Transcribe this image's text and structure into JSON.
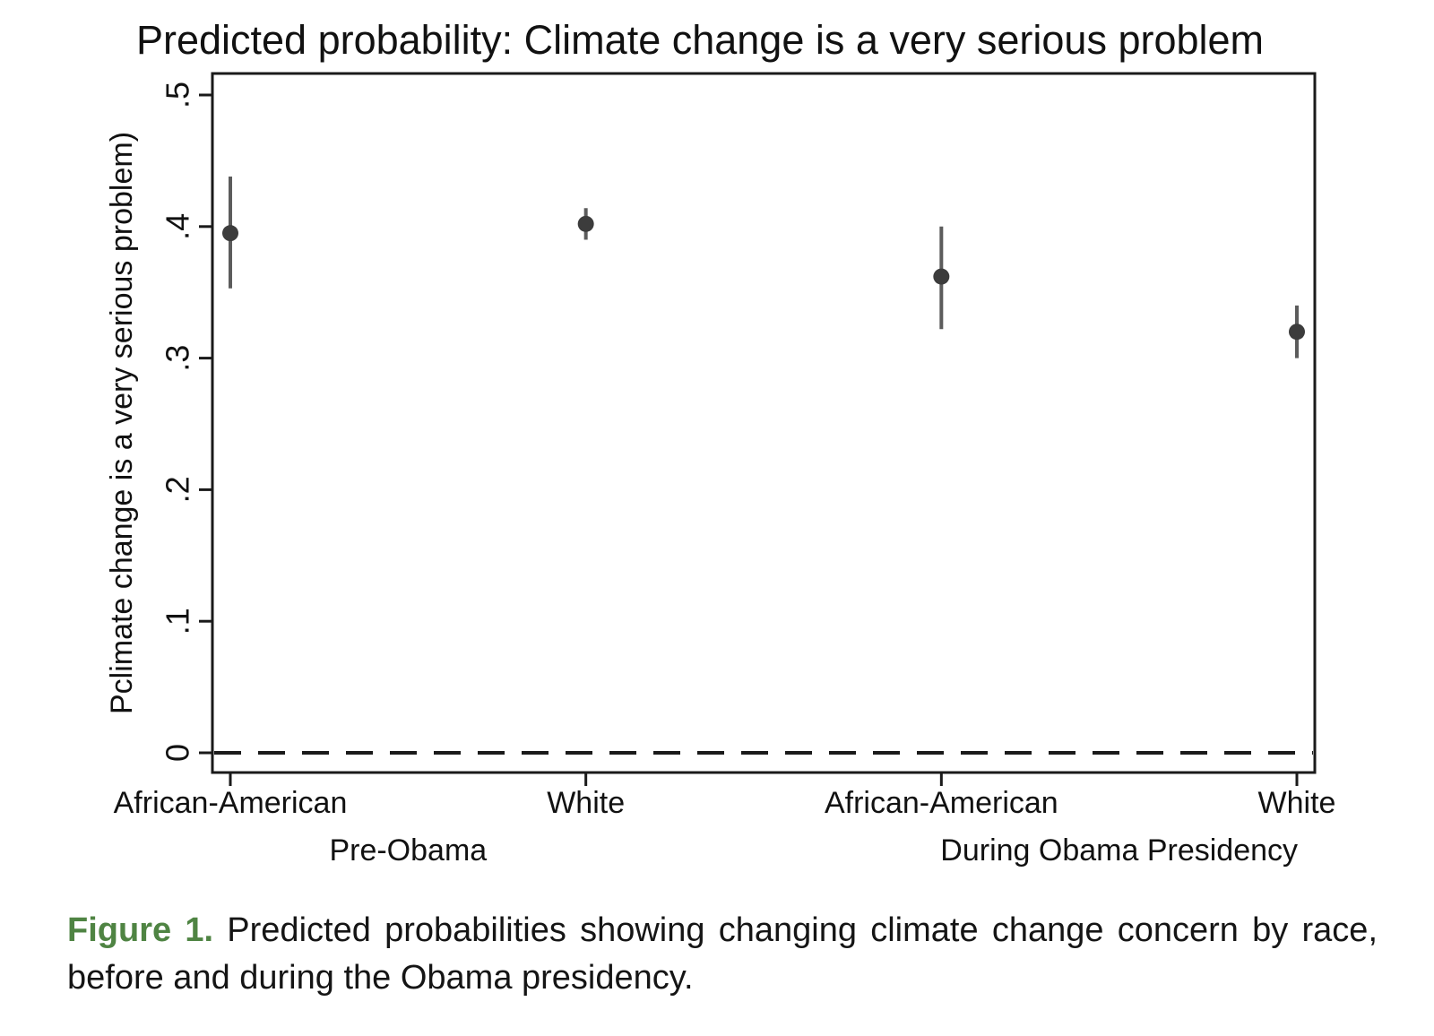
{
  "chart_data": {
    "type": "scatter",
    "title": "Predicted probability: Climate change is a very serious problem",
    "ylabel": "Pclimate change is a very serious problem)",
    "xlabel": "",
    "ylim": [
      -0.015,
      0.517
    ],
    "grid": false,
    "legend": "none",
    "zero_reference_line": {
      "value": 0,
      "style": "dashed"
    },
    "y_ticks": [
      {
        "value": 0,
        "label": "0"
      },
      {
        "value": 0.1,
        "label": ".1"
      },
      {
        "value": 0.2,
        "label": ".2"
      },
      {
        "value": 0.3,
        "label": ".3"
      },
      {
        "value": 0.4,
        "label": ".4"
      },
      {
        "value": 0.5,
        "label": ".5"
      }
    ],
    "groups": [
      {
        "label": "Pre-Obama",
        "categories": [
          "African-American",
          "White"
        ]
      },
      {
        "label": "During Obama Presidency",
        "categories": [
          "African-American",
          "White"
        ]
      }
    ],
    "points": [
      {
        "group": "Pre-Obama",
        "category": "African-American",
        "estimate": 0.395,
        "ci_low": 0.353,
        "ci_high": 0.438
      },
      {
        "group": "Pre-Obama",
        "category": "White",
        "estimate": 0.402,
        "ci_low": 0.39,
        "ci_high": 0.414
      },
      {
        "group": "During Obama Presidency",
        "category": "African-American",
        "estimate": 0.362,
        "ci_low": 0.322,
        "ci_high": 0.4
      },
      {
        "group": "During Obama Presidency",
        "category": "White",
        "estimate": 0.32,
        "ci_low": 0.3,
        "ci_high": 0.34
      }
    ],
    "colors": {
      "marker": "#3c3c3c",
      "ci_line": "#5c5c5c",
      "axis": "#1a1a1a"
    }
  },
  "caption": {
    "label": "Figure 1.",
    "label_color": "#4f8443",
    "line1": "Predicted probabilities showing changing climate change concern by race,",
    "line2": "before and during the Obama presidency."
  }
}
